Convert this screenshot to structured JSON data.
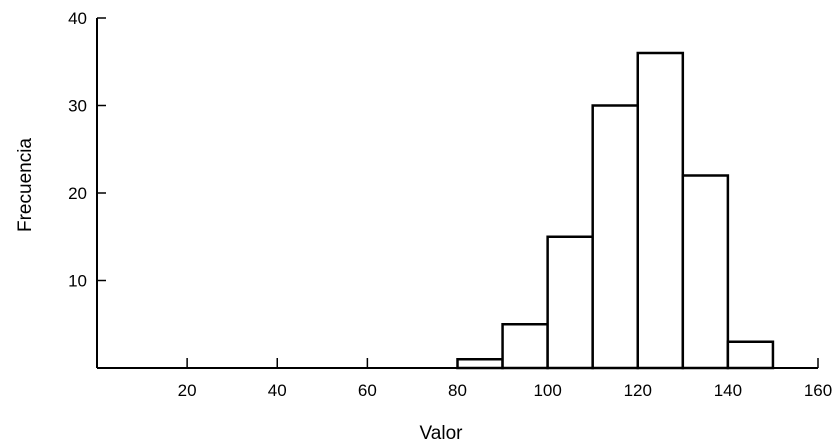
{
  "chart_data": {
    "type": "bar",
    "title": "",
    "xlabel": "Valor",
    "ylabel": "Frecuencia",
    "xlim": [
      0,
      160
    ],
    "ylim": [
      0,
      40
    ],
    "xticks": [
      20,
      40,
      60,
      80,
      100,
      120,
      140,
      160
    ],
    "yticks": [
      10,
      20,
      30,
      40
    ],
    "bins": [
      {
        "start": 80,
        "end": 90,
        "value": 1
      },
      {
        "start": 90,
        "end": 100,
        "value": 5
      },
      {
        "start": 100,
        "end": 110,
        "value": 15
      },
      {
        "start": 110,
        "end": 120,
        "value": 30
      },
      {
        "start": 120,
        "end": 130,
        "value": 36
      },
      {
        "start": 130,
        "end": 140,
        "value": 22
      },
      {
        "start": 140,
        "end": 150,
        "value": 3
      }
    ],
    "grid": false,
    "colors": {
      "bar_fill": "#ffffff",
      "bar_stroke": "#000000"
    }
  }
}
